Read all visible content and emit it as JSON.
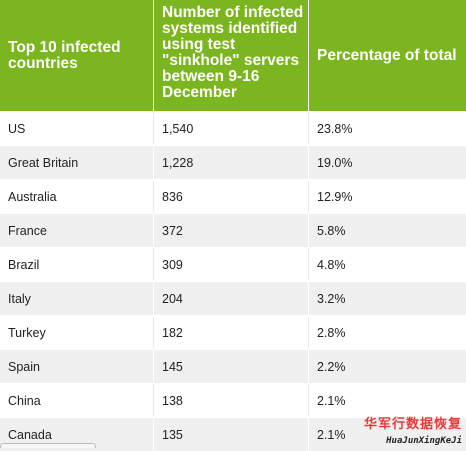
{
  "table": {
    "headers": [
      "Top 10 infected countries",
      "Number of infected systems identified using test \"sinkhole\" servers between 9-16 December",
      "Percentage of total"
    ],
    "rows": [
      {
        "country": "US",
        "count": "1,540",
        "percent": "23.8%"
      },
      {
        "country": "Great Britain",
        "count": "1,228",
        "percent": "19.0%"
      },
      {
        "country": "Australia",
        "count": "836",
        "percent": "12.9%"
      },
      {
        "country": "France",
        "count": "372",
        "percent": "5.8%"
      },
      {
        "country": "Brazil",
        "count": "309",
        "percent": "4.8%"
      },
      {
        "country": "Italy",
        "count": "204",
        "percent": "3.2%"
      },
      {
        "country": "Turkey",
        "count": "182",
        "percent": "2.8%"
      },
      {
        "country": "Spain",
        "count": "145",
        "percent": "2.2%"
      },
      {
        "country": "China",
        "count": "138",
        "percent": "2.1%"
      },
      {
        "country": "Canada",
        "count": "135",
        "percent": "2.1%"
      }
    ]
  },
  "watermark": {
    "title": "华军行数据恢复",
    "subtitle": "HuaJunXingKeJi"
  },
  "colors": {
    "header_bg": "#7bb51f",
    "row_alt_bg": "#f0f0f0",
    "watermark": "#e83c3c"
  }
}
